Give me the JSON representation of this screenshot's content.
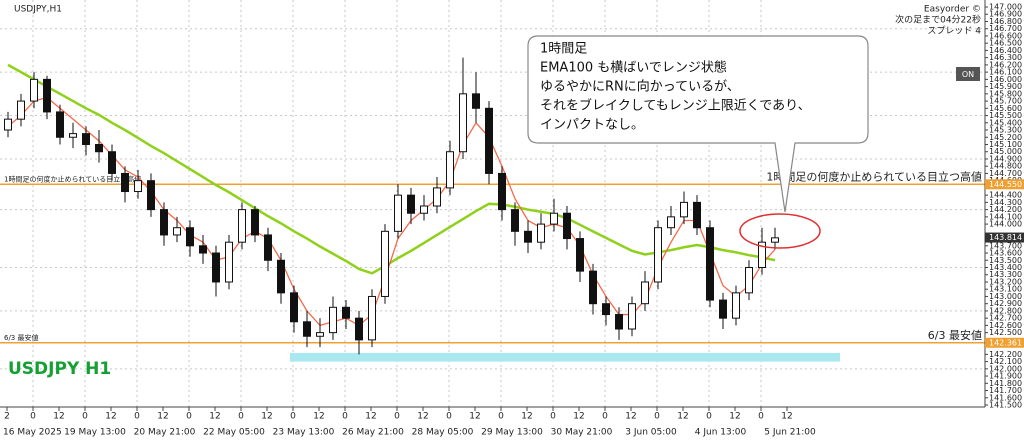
{
  "chart_data": {
    "type": "candlestick",
    "title": "USDJPY,H1",
    "watermark": "USDJPY H1",
    "info_lines": [
      "Easyorder ©",
      "次の足まで04分22秒",
      "スプレッド 4"
    ],
    "button": "ON",
    "callout": [
      "1時間足",
      "EMA100 も横ばいでレンジ状態",
      "ゆるやかにRNに向かっているが、",
      "それをブレイクしてもレンジ上限近くであり、",
      "インパクトなし。"
    ],
    "x_hour_labels": [
      "2",
      "0",
      "12",
      "0",
      "12",
      "0",
      "12",
      "0",
      "12",
      "0",
      "12",
      "0",
      "12",
      "0",
      "12",
      "0",
      "12",
      "0",
      "12",
      "0",
      "12",
      "0",
      "12",
      "0",
      "12",
      "0",
      "12",
      "0",
      "12",
      "0",
      "12"
    ],
    "x_date_labels": [
      "16 May 2025",
      "19 May 13:00",
      "20 May 21:00",
      "22 May 05:00",
      "23 May 13:00",
      "26 May 21:00",
      "28 May 05:00",
      "29 May 13:00",
      "30 May 21:00",
      "3 Jun 05:00",
      "4 Jun 13:00",
      "5 Jun 21:00"
    ],
    "open": [
      145.3,
      145.45,
      145.7,
      146.0,
      145.55,
      145.2,
      145.25,
      145.1,
      145.0,
      144.7,
      144.45,
      144.6,
      144.2,
      143.85,
      143.95,
      143.7,
      143.6,
      143.2,
      143.75,
      144.2,
      143.85,
      143.5,
      143.05,
      142.65,
      142.45,
      142.5,
      142.85,
      142.7,
      142.4,
      143.0,
      143.9,
      144.4,
      144.15,
      144.25,
      144.5,
      145.0,
      145.8,
      145.6,
      144.7,
      144.2,
      143.9,
      143.75,
      144.0,
      144.15,
      143.8,
      143.35,
      142.9,
      142.75,
      142.55,
      142.9,
      143.2,
      143.95,
      144.1,
      144.3,
      143.95,
      142.95,
      142.7,
      143.05,
      143.4,
      143.75
    ],
    "high": [
      145.55,
      145.8,
      146.1,
      146.05,
      145.65,
      145.4,
      145.35,
      145.3,
      145.1,
      144.8,
      144.75,
      144.7,
      144.3,
      144.1,
      144.05,
      143.85,
      143.7,
      143.85,
      144.3,
      144.25,
      143.95,
      143.6,
      143.15,
      142.8,
      142.7,
      143.0,
      142.95,
      142.8,
      143.1,
      144.0,
      144.55,
      144.5,
      144.4,
      144.65,
      145.15,
      146.3,
      146.1,
      145.7,
      144.8,
      144.3,
      144.05,
      144.15,
      144.35,
      144.25,
      143.9,
      143.45,
      143.0,
      142.85,
      143.0,
      143.35,
      144.05,
      144.25,
      144.45,
      144.4,
      144.05,
      143.05,
      143.15,
      143.5,
      143.95,
      143.95
    ],
    "low": [
      145.2,
      145.35,
      145.6,
      145.45,
      145.1,
      145.05,
      144.95,
      144.85,
      144.6,
      144.3,
      144.35,
      144.1,
      143.7,
      143.75,
      143.55,
      143.45,
      143.0,
      143.1,
      143.65,
      143.75,
      143.35,
      142.9,
      142.5,
      142.3,
      142.3,
      142.4,
      142.55,
      142.2,
      142.3,
      142.9,
      143.8,
      144.0,
      144.05,
      144.15,
      144.4,
      144.9,
      145.4,
      144.55,
      144.05,
      143.7,
      143.6,
      143.65,
      143.9,
      143.65,
      143.2,
      142.75,
      142.6,
      142.4,
      142.45,
      142.8,
      143.1,
      143.85,
      144.0,
      143.85,
      142.85,
      142.55,
      142.6,
      142.95,
      143.3,
      143.65
    ],
    "close": [
      145.45,
      145.7,
      146.0,
      145.55,
      145.2,
      145.25,
      145.1,
      145.0,
      144.7,
      144.45,
      144.6,
      144.2,
      143.85,
      143.95,
      143.7,
      143.6,
      143.2,
      143.75,
      144.2,
      143.85,
      143.5,
      143.05,
      142.65,
      142.45,
      142.5,
      142.85,
      142.7,
      142.4,
      143.0,
      143.9,
      144.4,
      144.15,
      144.25,
      144.5,
      145.0,
      145.8,
      145.6,
      144.7,
      144.2,
      143.9,
      143.75,
      144.0,
      144.15,
      143.8,
      143.35,
      142.9,
      142.75,
      142.55,
      142.9,
      143.2,
      143.95,
      144.1,
      144.3,
      143.95,
      142.95,
      142.7,
      143.05,
      143.4,
      143.75,
      143.81
    ],
    "series": [
      {
        "color": "#8fd11a",
        "values": [
          146.2,
          146.1,
          146.0,
          145.9,
          145.8,
          145.7,
          145.6,
          145.51,
          145.4,
          145.3,
          145.19,
          145.08,
          144.98,
          144.87,
          144.76,
          144.65,
          144.54,
          144.44,
          144.33,
          144.22,
          144.11,
          144.01,
          143.9,
          143.8,
          143.69,
          143.59,
          143.49,
          143.38,
          143.32,
          143.42,
          143.53,
          143.63,
          143.74,
          143.85,
          143.96,
          144.07,
          144.18,
          144.28,
          144.27,
          144.24,
          144.2,
          144.17,
          144.14,
          144.08,
          143.99,
          143.9,
          143.81,
          143.72,
          143.63,
          143.58,
          143.61,
          143.64,
          143.68,
          143.71,
          143.68,
          143.64,
          143.61,
          143.57,
          143.54,
          143.5
        ]
      },
      {
        "color": "#f26a4b",
        "values": [
          145.35,
          145.5,
          145.7,
          145.75,
          145.6,
          145.45,
          145.3,
          145.15,
          144.95,
          144.75,
          144.65,
          144.45,
          144.2,
          144.05,
          143.85,
          143.75,
          143.5,
          143.55,
          143.8,
          143.9,
          143.8,
          143.5,
          143.1,
          142.8,
          142.6,
          142.65,
          142.7,
          142.6,
          142.75,
          143.25,
          143.8,
          144.05,
          144.2,
          144.35,
          144.6,
          145.1,
          145.4,
          145.2,
          144.8,
          144.35,
          144.05,
          143.95,
          144.0,
          143.95,
          143.7,
          143.3,
          143.0,
          142.75,
          142.75,
          142.95,
          143.4,
          143.75,
          144.05,
          144.05,
          143.6,
          143.15,
          143.0,
          143.15,
          143.45,
          143.65
        ]
      }
    ],
    "levels": [
      {
        "value": 144.55,
        "label": "1時間足の何度か止められている目立つ高値",
        "price_label": "144.550",
        "color": "#f0a030"
      },
      {
        "value": 142.36,
        "label": "6/3 最安値",
        "price_label": "142.361",
        "color": "#f0a030"
      }
    ],
    "zone": {
      "low": 142.1,
      "high": 142.22,
      "color": "#a8e8ee"
    },
    "current_price": {
      "value": 143.814,
      "label": "143.814"
    },
    "ylim": [
      141.5,
      147.0
    ],
    "yticks": [
      {
        "value": 147.0,
        "label": "147.000"
      },
      {
        "value": 146.9,
        "label": "146.900"
      },
      {
        "value": 146.8,
        "label": "146.800"
      },
      {
        "value": 146.7,
        "label": "146.700"
      },
      {
        "value": 146.6,
        "label": "146.600"
      },
      {
        "value": 146.5,
        "label": "146.500"
      },
      {
        "value": 146.4,
        "label": "146.400"
      },
      {
        "value": 146.3,
        "label": "146.300"
      },
      {
        "value": 146.2,
        "label": "146.200"
      },
      {
        "value": 146.1,
        "label": "146.100"
      },
      {
        "value": 146.0,
        "label": "146.000"
      },
      {
        "value": 145.9,
        "label": "145.900"
      },
      {
        "value": 145.8,
        "label": "145.800"
      },
      {
        "value": 145.7,
        "label": "145.700"
      },
      {
        "value": 145.6,
        "label": "145.600"
      },
      {
        "value": 145.5,
        "label": "145.500"
      },
      {
        "value": 145.4,
        "label": "145.400"
      },
      {
        "value": 145.3,
        "label": "145.300"
      },
      {
        "value": 145.2,
        "label": "145.200"
      },
      {
        "value": 145.1,
        "label": "145.100"
      },
      {
        "value": 145.0,
        "label": "145.000"
      },
      {
        "value": 144.9,
        "label": "144.900"
      },
      {
        "value": 144.8,
        "label": "144.800"
      },
      {
        "value": 144.7,
        "label": "144.700"
      },
      {
        "value": 144.6,
        "label": "144.600"
      },
      {
        "value": 144.4,
        "label": "144.400"
      },
      {
        "value": 144.3,
        "label": "144.300"
      },
      {
        "value": 144.2,
        "label": "144.200"
      },
      {
        "value": 144.1,
        "label": "144.100"
      },
      {
        "value": 144.0,
        "label": "144.000"
      },
      {
        "value": 143.7,
        "label": "143.700"
      },
      {
        "value": 143.6,
        "label": "143.600"
      },
      {
        "value": 143.5,
        "label": "143.500"
      },
      {
        "value": 143.4,
        "label": "143.400"
      },
      {
        "value": 143.3,
        "label": "143.300"
      },
      {
        "value": 143.2,
        "label": "143.200"
      },
      {
        "value": 143.1,
        "label": "143.100"
      },
      {
        "value": 143.0,
        "label": "143.000"
      },
      {
        "value": 142.9,
        "label": "142.900"
      },
      {
        "value": 142.8,
        "label": "142.800"
      },
      {
        "value": 142.7,
        "label": "142.700"
      },
      {
        "value": 142.6,
        "label": "142.600"
      },
      {
        "value": 142.5,
        "label": "142.500"
      },
      {
        "value": 142.2,
        "label": "142.200"
      },
      {
        "value": 142.1,
        "label": "142.100"
      },
      {
        "value": 142.0,
        "label": "142.000"
      },
      {
        "value": 141.9,
        "label": "141.900"
      },
      {
        "value": 141.8,
        "label": "141.800"
      },
      {
        "value": 141.7,
        "label": "141.700"
      },
      {
        "value": 141.6,
        "label": "141.600"
      },
      {
        "value": 141.5,
        "label": "141.500"
      }
    ],
    "grid": true
  }
}
